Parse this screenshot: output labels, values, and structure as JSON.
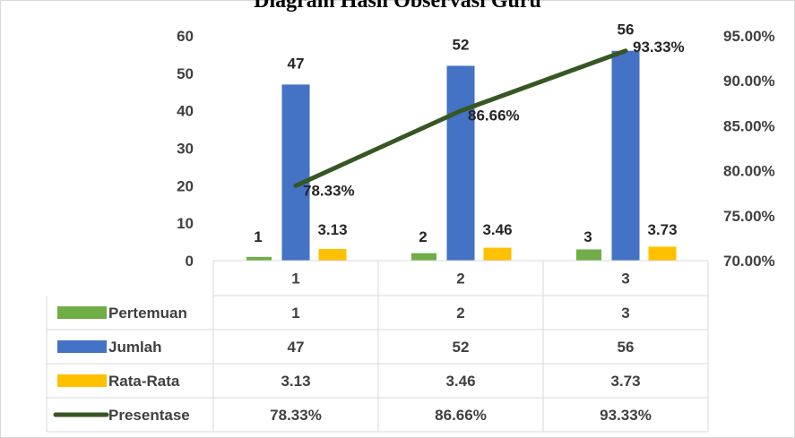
{
  "chart_data": {
    "type": "bar",
    "title": "Diagram Hasil Observasi Guru",
    "categories": [
      "1",
      "2",
      "3"
    ],
    "series": [
      {
        "name": "Pertemuan",
        "values": [
          1,
          2,
          3
        ],
        "color": "#70ad47",
        "axis": "left",
        "kind": "bar",
        "labels": [
          "1",
          "2",
          "3"
        ]
      },
      {
        "name": "Jumlah",
        "values": [
          47,
          52,
          56
        ],
        "color": "#4472c4",
        "axis": "left",
        "kind": "bar",
        "labels": [
          "47",
          "52",
          "56"
        ]
      },
      {
        "name": "Rata-Rata",
        "values": [
          3.13,
          3.46,
          3.73
        ],
        "color": "#ffc000",
        "axis": "left",
        "kind": "bar",
        "labels": [
          "3.13",
          "3.46",
          "3.73"
        ]
      },
      {
        "name": "Presentase",
        "values": [
          78.33,
          86.66,
          93.33
        ],
        "color": "#375623",
        "axis": "right",
        "kind": "line",
        "labels": [
          "78.33%",
          "86.66%",
          "93.33%"
        ]
      }
    ],
    "y_left": {
      "ylim": [
        0,
        60
      ],
      "ticks": [
        "0",
        "10",
        "20",
        "30",
        "40",
        "50",
        "60"
      ],
      "tick_values": [
        0,
        10,
        20,
        30,
        40,
        50,
        60
      ]
    },
    "y_right": {
      "ylim": [
        70,
        95
      ],
      "ticks": [
        "70.00%",
        "75.00%",
        "80.00%",
        "85.00%",
        "90.00%",
        "95.00%"
      ],
      "tick_values": [
        70,
        75,
        80,
        85,
        90,
        95
      ]
    },
    "grid": false,
    "legend": "data-table",
    "data_table": {
      "header": [
        "1",
        "2",
        "3"
      ],
      "rows": [
        {
          "label": "Pertemuan",
          "cells": [
            "1",
            "2",
            "3"
          ]
        },
        {
          "label": "Jumlah",
          "cells": [
            "47",
            "52",
            "56"
          ]
        },
        {
          "label": "Rata-Rata",
          "cells": [
            "3.13",
            "3.46",
            "3.73"
          ]
        },
        {
          "label": "Presentase",
          "cells": [
            "78.33%",
            "86.66%",
            "93.33%"
          ]
        }
      ]
    }
  }
}
